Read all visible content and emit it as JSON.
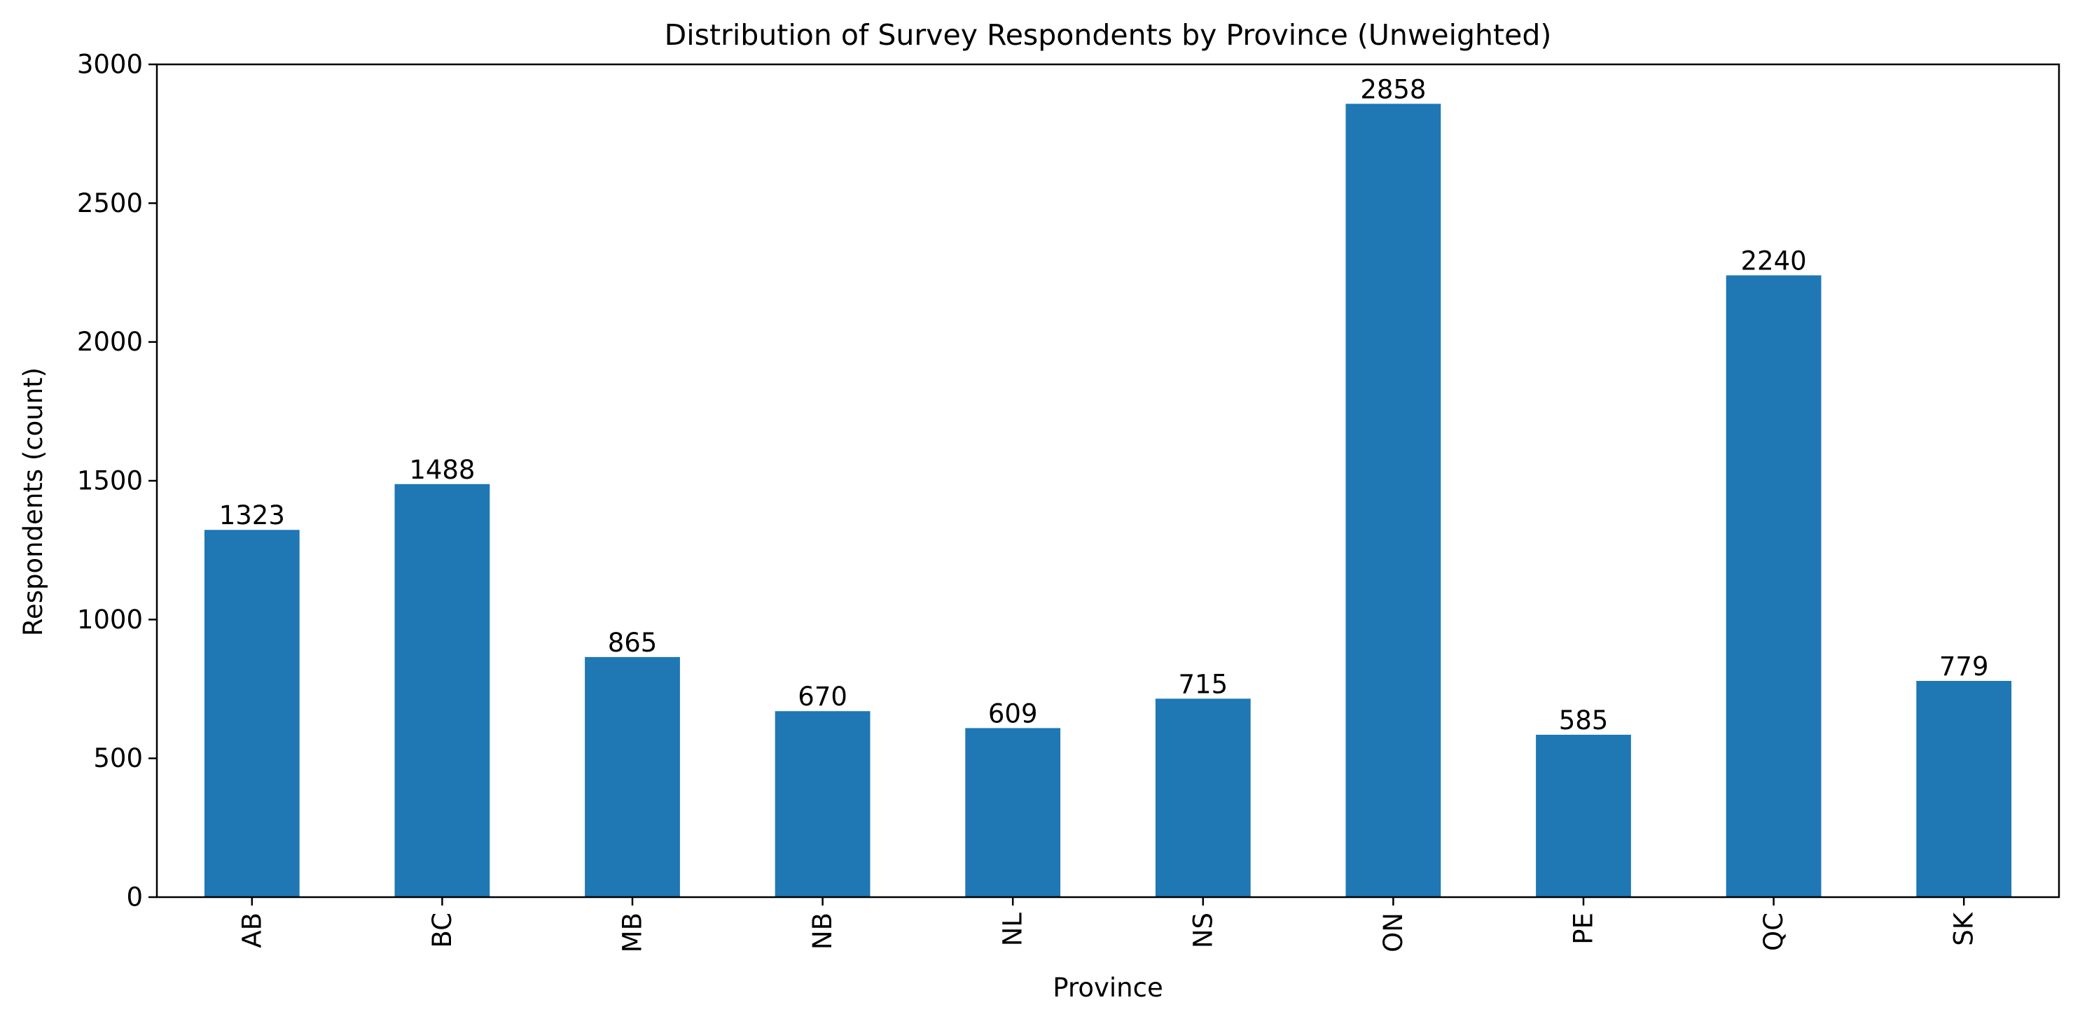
{
  "chart_data": {
    "type": "bar",
    "title": "Distribution of Survey Respondents by Province (Unweighted)",
    "xlabel": "Province",
    "ylabel": "Respondents (count)",
    "categories": [
      "AB",
      "BC",
      "MB",
      "NB",
      "NL",
      "NS",
      "ON",
      "PE",
      "QC",
      "SK"
    ],
    "values": [
      1323,
      1488,
      865,
      670,
      609,
      715,
      2858,
      585,
      2240,
      779
    ],
    "data_labels": [
      "1323",
      "1488",
      "865",
      "670",
      "609",
      "715",
      "2858",
      "585",
      "2240",
      "779"
    ],
    "ylim": [
      0,
      3000
    ],
    "yticks": [
      0,
      500,
      1000,
      1500,
      2000,
      2500,
      3000
    ],
    "ytick_labels": [
      "0",
      "500",
      "1000",
      "1500",
      "2000",
      "2500",
      "3000"
    ],
    "bar_color": "#1f77b4",
    "grid": false,
    "legend": "none",
    "xtick_rotation": "vertical"
  }
}
